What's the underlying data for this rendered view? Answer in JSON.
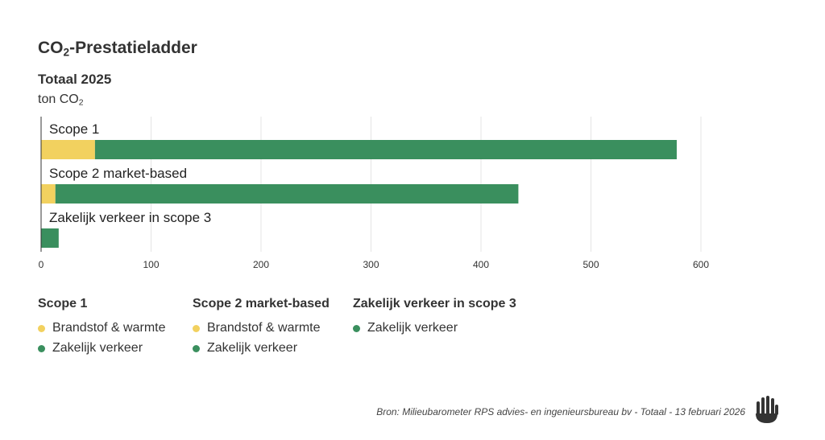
{
  "header": {
    "title_main": "CO",
    "title_sub": "2",
    "title_rest": "-Prestatieladder",
    "subtitle": "Totaal 2025",
    "unit_main": "ton CO",
    "unit_sub": "2"
  },
  "colors": {
    "brandstof": "#F2D15F",
    "verkeer": "#3A8F5E",
    "grid": "#e4e4e4",
    "axis": "#333333"
  },
  "chart_data": {
    "type": "bar",
    "orientation": "horizontal",
    "stacked": true,
    "categories": [
      "Scope 1",
      "Scope 2 market-based",
      "Zakelijk verkeer in scope 3"
    ],
    "series": [
      {
        "name": "Brandstof & warmte",
        "color": "#F2D15F",
        "values": [
          49,
          13,
          0
        ]
      },
      {
        "name": "Zakelijk verkeer",
        "color": "#3A8F5E",
        "values": [
          529,
          421,
          16
        ]
      }
    ],
    "xlim": [
      0,
      600
    ],
    "xticks": [
      0,
      100,
      200,
      300,
      400,
      500,
      600
    ],
    "grid": true
  },
  "legend": {
    "groups": [
      {
        "title": "Scope 1",
        "items": [
          {
            "label": "Brandstof & warmte",
            "color": "#F2D15F"
          },
          {
            "label": "Zakelijk verkeer",
            "color": "#3A8F5E"
          }
        ]
      },
      {
        "title": "Scope 2 market-based",
        "items": [
          {
            "label": "Brandstof & warmte",
            "color": "#F2D15F"
          },
          {
            "label": "Zakelijk verkeer",
            "color": "#3A8F5E"
          }
        ]
      },
      {
        "title": "Zakelijk verkeer in scope 3",
        "items": [
          {
            "label": "Zakelijk verkeer",
            "color": "#3A8F5E"
          }
        ]
      }
    ]
  },
  "footer": {
    "source": "Bron: Milieubarometer RPS advies- en ingenieursbureau bv - Totaal - 13 februari 2026",
    "logo_icon": "hand-logo-icon"
  }
}
